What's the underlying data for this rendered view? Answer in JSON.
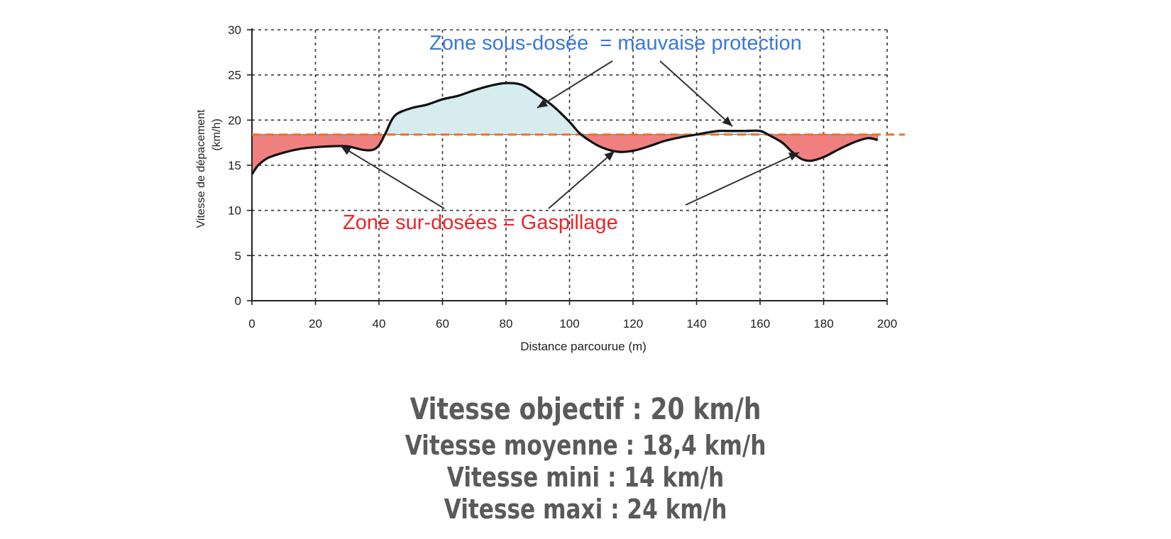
{
  "chart_data": {
    "type": "line",
    "xlabel": "Distance parcourue (m)",
    "ylabel": "Vitesse de dépacement",
    "ylabel_unit": "(km/h)",
    "xlim": [
      0,
      200
    ],
    "ylim": [
      0,
      30
    ],
    "x_ticks": [
      "0",
      "20",
      "40",
      "60",
      "80",
      "100",
      "120",
      "140",
      "160",
      "180",
      "200"
    ],
    "y_ticks": [
      "0",
      "5",
      "10",
      "15",
      "20",
      "25",
      "30"
    ],
    "grid": true,
    "target_line": 18.4,
    "series": [
      {
        "x": [
          0,
          2,
          5,
          10,
          15,
          20,
          25,
          30,
          35,
          38,
          40,
          42,
          45,
          50,
          55,
          60,
          65,
          70,
          75,
          80,
          85,
          90,
          95,
          100,
          103,
          106,
          110,
          115,
          120,
          125,
          130,
          135,
          140,
          143,
          147,
          150,
          155,
          160,
          163,
          167,
          170,
          173,
          176,
          180,
          185,
          190,
          194,
          197
        ],
        "y": [
          14,
          15,
          15.8,
          16.4,
          16.8,
          17,
          17.1,
          17.1,
          16.7,
          16.7,
          17.2,
          18.5,
          20.5,
          21.3,
          21.7,
          22.3,
          22.7,
          23.3,
          23.8,
          24.1,
          23.9,
          22.8,
          21.5,
          19.8,
          18.6,
          17.8,
          17,
          16.5,
          16.6,
          17.1,
          17.7,
          18.1,
          18.4,
          18.6,
          18.8,
          18.8,
          18.8,
          18.8,
          18.3,
          17.5,
          16.5,
          15.7,
          15.5,
          15.9,
          16.8,
          17.6,
          18,
          17.8
        ]
      }
    ],
    "annotations": {
      "under": "Zone sous-dosée  = mauvaise protection",
      "over": "Zone sur-dosées = Gaspillage"
    },
    "colors": {
      "over_fill": "#f08080",
      "under_fill": "#d6ecee",
      "target": "#f07020",
      "line": "#111111",
      "under_text": "#3a78d8",
      "over_text": "#e8262a"
    }
  },
  "captions": {
    "objectif": "Vitesse objectif : 20 km/h",
    "moyenne": "Vitesse moyenne : 18,4 km/h",
    "mini": "Vitesse mini : 14 km/h",
    "maxi": "Vitesse maxi : 24 km/h"
  }
}
